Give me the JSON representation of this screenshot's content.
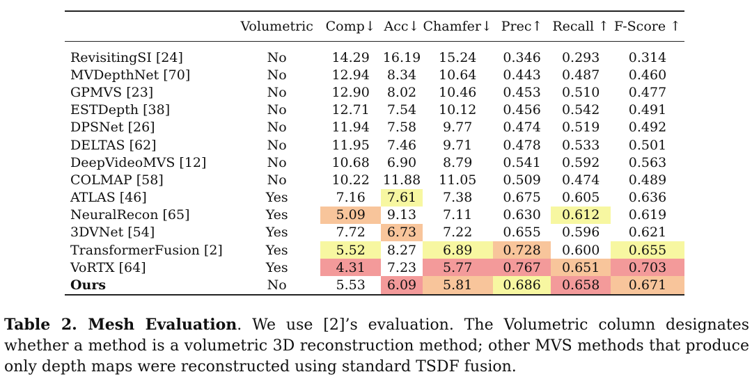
{
  "table": {
    "headers": [
      "",
      "Volumetric",
      "Comp↓",
      "Acc↓",
      "Chamfer↓",
      "Prec↑",
      "Recall ↑",
      "F-Score ↑"
    ],
    "rows": [
      {
        "method": "RevisitingSI [24]",
        "volumetric": "No",
        "comp": "14.29",
        "acc": "16.19",
        "chamfer": "15.24",
        "prec": "0.346",
        "recall": "0.293",
        "fscore": "0.314"
      },
      {
        "method": "MVDepthNet [70]",
        "volumetric": "No",
        "comp": "12.94",
        "acc": "8.34",
        "chamfer": "10.64",
        "prec": "0.443",
        "recall": "0.487",
        "fscore": "0.460"
      },
      {
        "method": "GPMVS [23]",
        "volumetric": "No",
        "comp": "12.90",
        "acc": "8.02",
        "chamfer": "10.46",
        "prec": "0.453",
        "recall": "0.510",
        "fscore": "0.477"
      },
      {
        "method": "ESTDepth [38]",
        "volumetric": "No",
        "comp": "12.71",
        "acc": "7.54",
        "chamfer": "10.12",
        "prec": "0.456",
        "recall": "0.542",
        "fscore": "0.491"
      },
      {
        "method": "DPSNet [26]",
        "volumetric": "No",
        "comp": "11.94",
        "acc": "7.58",
        "chamfer": "9.77",
        "prec": "0.474",
        "recall": "0.519",
        "fscore": "0.492"
      },
      {
        "method": "DELTAS [62]",
        "volumetric": "No",
        "comp": "11.95",
        "acc": "7.46",
        "chamfer": "9.71",
        "prec": "0.478",
        "recall": "0.533",
        "fscore": "0.501"
      },
      {
        "method": "DeepVideoMVS [12]",
        "volumetric": "No",
        "comp": "10.68",
        "acc": "6.90",
        "chamfer": "8.79",
        "prec": "0.541",
        "recall": "0.592",
        "fscore": "0.563"
      },
      {
        "method": "COLMAP [58]",
        "volumetric": "No",
        "comp": "10.22",
        "acc": "11.88",
        "chamfer": "11.05",
        "prec": "0.509",
        "recall": "0.474",
        "fscore": "0.489"
      },
      {
        "method": "ATLAS [46]",
        "volumetric": "Yes",
        "comp": "7.16",
        "acc": "7.61",
        "chamfer": "7.38",
        "prec": "0.675",
        "recall": "0.605",
        "fscore": "0.636"
      },
      {
        "method": "NeuralRecon [65]",
        "volumetric": "Yes",
        "comp": "5.09",
        "acc": "9.13",
        "chamfer": "7.11",
        "prec": "0.630",
        "recall": "0.612",
        "fscore": "0.619"
      },
      {
        "method": "3DVNet [54]",
        "volumetric": "Yes",
        "comp": "7.72",
        "acc": "6.73",
        "chamfer": "7.22",
        "prec": "0.655",
        "recall": "0.596",
        "fscore": "0.621"
      },
      {
        "method": "TransformerFusion [2]",
        "volumetric": "Yes",
        "comp": "5.52",
        "acc": "8.27",
        "chamfer": "6.89",
        "prec": "0.728",
        "recall": "0.600",
        "fscore": "0.655"
      },
      {
        "method": "VoRTX [64]",
        "volumetric": "Yes",
        "comp": "4.31",
        "acc": "7.23",
        "chamfer": "5.77",
        "prec": "0.767",
        "recall": "0.651",
        "fscore": "0.703"
      },
      {
        "method": "Ours",
        "volumetric": "No",
        "comp": "5.53",
        "acc": "6.09",
        "chamfer": "5.81",
        "prec": "0.686",
        "recall": "0.658",
        "fscore": "0.671",
        "bold": true
      }
    ],
    "highlights": [
      {
        "row": 8,
        "col": "acc",
        "color": "#f7f7a1"
      },
      {
        "row": 9,
        "col": "comp",
        "color": "#f8c59b"
      },
      {
        "row": 9,
        "col": "recall",
        "color": "#f7f7a1"
      },
      {
        "row": 10,
        "col": "acc",
        "color": "#f8c59b"
      },
      {
        "row": 11,
        "col": "comp",
        "color": "#f7f7a1"
      },
      {
        "row": 11,
        "col": "chamfer",
        "color": "#f7f7a1"
      },
      {
        "row": 11,
        "col": "prec",
        "color": "#f8c59b"
      },
      {
        "row": 11,
        "col": "fscore",
        "color": "#f7f7a1"
      },
      {
        "row": 12,
        "col": "comp",
        "color": "#f39a9a"
      },
      {
        "row": 12,
        "col": "chamfer",
        "color": "#f39a9a"
      },
      {
        "row": 12,
        "col": "prec",
        "color": "#f39a9a"
      },
      {
        "row": 12,
        "col": "recall",
        "color": "#f8c59b"
      },
      {
        "row": 12,
        "col": "fscore",
        "color": "#f39a9a"
      },
      {
        "row": 13,
        "col": "acc",
        "color": "#f39a9a"
      },
      {
        "row": 13,
        "col": "chamfer",
        "color": "#f8c59b"
      },
      {
        "row": 13,
        "col": "prec",
        "color": "#f7f7a1"
      },
      {
        "row": 13,
        "col": "recall",
        "color": "#f39a9a"
      },
      {
        "row": 13,
        "col": "fscore",
        "color": "#f8c59b"
      }
    ]
  },
  "caption": {
    "label": "Table 2. Mesh Evaluation",
    "text": ". We use [2]’s evaluation. The Volumetric column designates whether a method is a volumetric 3D reconstruction method; other MVS methods that produce only depth maps were reconstructed using standard TSDF fusion."
  }
}
